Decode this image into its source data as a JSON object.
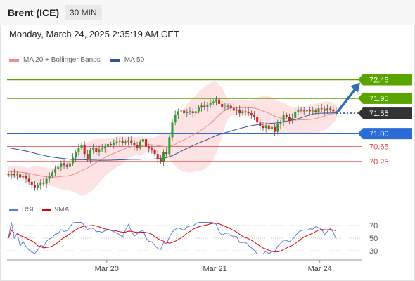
{
  "header": {
    "symbol": "Brent (ICE)",
    "timeframe": "30 MIN"
  },
  "datetime": "Monday, March 24, 2025 2:35:19 AM CET",
  "legend": {
    "items": [
      {
        "label": "MA 20 + Bollinger Bands",
        "color": "#f28b8b"
      },
      {
        "label": "MA 50",
        "color": "#2f5597"
      }
    ]
  },
  "rsi_legend": {
    "items": [
      {
        "label": "RSI",
        "color": "#5b7fd6"
      },
      {
        "label": "9MA",
        "color": "#e00000"
      }
    ]
  },
  "chart_data": [
    {
      "type": "candlestick",
      "title": "Brent (ICE)",
      "ylim": [
        69.3,
        72.8
      ],
      "x_ticks": [
        "Mar 20",
        "Mar 21",
        "Mar 24"
      ],
      "price_levels": [
        {
          "value": 72.45,
          "label": "72.45",
          "color": "#5aa400",
          "style": "solid"
        },
        {
          "value": 71.95,
          "label": "71.95",
          "color": "#5aa400",
          "style": "solid"
        },
        {
          "value": 71.55,
          "label": "71.55",
          "color": "#333333",
          "style": "current"
        },
        {
          "value": 71.0,
          "label": "71.00",
          "color": "#2b6bd8",
          "style": "solid"
        },
        {
          "value": 70.65,
          "label": "70.65",
          "color": "#e04040",
          "style": "thin"
        },
        {
          "value": 70.25,
          "label": "70.25",
          "color": "#e04040",
          "style": "thin"
        }
      ],
      "closes": [
        69.88,
        69.92,
        69.88,
        69.9,
        69.82,
        69.85,
        69.78,
        69.7,
        69.62,
        69.55,
        69.6,
        69.68,
        69.65,
        69.78,
        69.85,
        69.95,
        70.05,
        70.1,
        70.2,
        70.15,
        70.1,
        70.2,
        70.35,
        70.5,
        70.62,
        70.7,
        70.45,
        70.32,
        70.55,
        70.62,
        70.5,
        70.58,
        70.6,
        70.65,
        70.72,
        70.7,
        70.75,
        70.78,
        70.8,
        70.76,
        70.78,
        70.82,
        70.75,
        70.68,
        70.62,
        70.78,
        70.85,
        70.65,
        70.6,
        70.55,
        70.45,
        70.3,
        70.25,
        70.5,
        70.45,
        70.9,
        71.3,
        71.5,
        71.6,
        71.62,
        71.55,
        71.58,
        71.6,
        71.55,
        71.6,
        71.7,
        71.75,
        71.72,
        71.78,
        71.82,
        71.86,
        71.92,
        71.8,
        71.72,
        71.7,
        71.75,
        71.68,
        71.62,
        71.65,
        71.55,
        71.6,
        71.58,
        71.55,
        71.5,
        71.45,
        71.3,
        71.2,
        71.15,
        71.22,
        71.12,
        71.18,
        71.05,
        71.25,
        71.3,
        71.5,
        71.45,
        71.35,
        71.42,
        71.58,
        71.65,
        71.62,
        71.6,
        71.64,
        71.6,
        71.62,
        71.58,
        71.68,
        71.66,
        71.62,
        71.68,
        71.65,
        71.6,
        71.55
      ],
      "ma20_start": 69.98,
      "ma50_start": 70.62,
      "bollinger_halfwidth": 0.25,
      "rsi_chart": {
        "y_ticks": [
          70,
          50,
          30
        ],
        "ylim": [
          20,
          80
        ],
        "series": [
          {
            "name": "RSI",
            "color": "#5b7fd6"
          },
          {
            "name": "9MA",
            "color": "#e00000"
          }
        ]
      }
    }
  ]
}
